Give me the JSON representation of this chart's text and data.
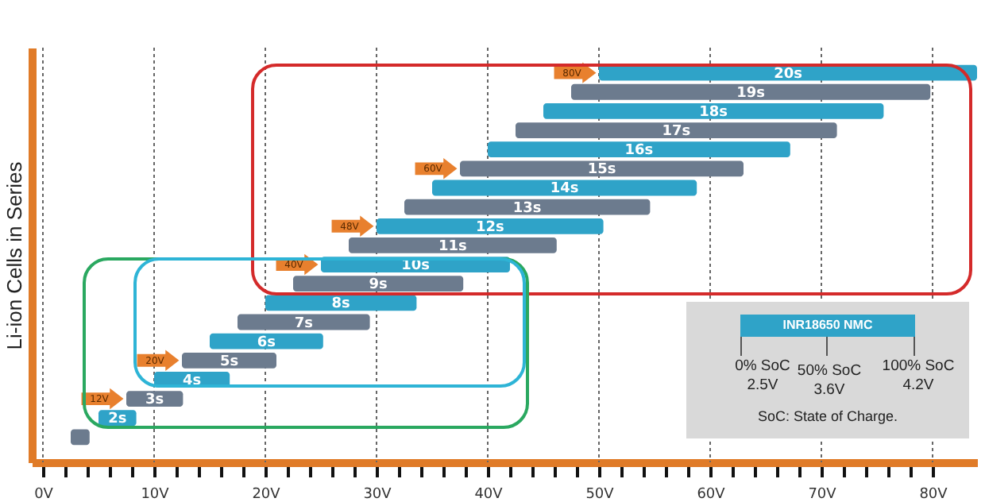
{
  "chart_data": {
    "type": "bar",
    "orientation": "horizontal",
    "ylabel": "Li-ion Cells in Series",
    "categories": [
      "20s",
      "19s",
      "18s",
      "17s",
      "16s",
      "15s",
      "14s",
      "13s",
      "12s",
      "11s",
      "10s",
      "9s",
      "8s",
      "7s",
      "6s",
      "5s",
      "4s",
      "3s",
      "2s",
      null
    ],
    "base": [
      50,
      47.5,
      45,
      42.5,
      40,
      37.5,
      35,
      32.5,
      30,
      27.5,
      25,
      22.5,
      20,
      17.5,
      15,
      12.5,
      10,
      7.5,
      5,
      2.5
    ],
    "values": [
      34,
      32.3,
      30.6,
      28.9,
      27.2,
      25.5,
      23.8,
      22.1,
      20.4,
      18.7,
      17,
      15.3,
      13.6,
      11.9,
      10.2,
      8.5,
      6.8,
      5.1,
      3.4,
      1.7
    ],
    "colors": [
      "#2fa3c8",
      "#6c7b8e",
      "#2fa3c8",
      "#6c7b8e",
      "#2fa3c8",
      "#6c7b8e",
      "#2fa3c8",
      "#6c7b8e",
      "#2fa3c8",
      "#6c7b8e",
      "#2fa3c8",
      "#6c7b8e",
      "#2fa3c8",
      "#6c7b8e",
      "#2fa3c8",
      "#6c7b8e",
      "#2fa3c8",
      "#6c7b8e",
      "#2fa3c8",
      "#6c7b8e"
    ],
    "xlim": [
      -1,
      84
    ],
    "xticks": [
      {
        "value": 0,
        "label": "0V"
      },
      {
        "value": 2,
        "label": null
      },
      {
        "value": 4,
        "label": null
      },
      {
        "value": 6,
        "label": null
      },
      {
        "value": 8,
        "label": null
      },
      {
        "value": 10,
        "label": "10V"
      },
      {
        "value": 12,
        "label": null
      },
      {
        "value": 14,
        "label": null
      },
      {
        "value": 16,
        "label": null
      },
      {
        "value": 18,
        "label": null
      },
      {
        "value": 20,
        "label": "20V"
      },
      {
        "value": 22,
        "label": null
      },
      {
        "value": 24,
        "label": null
      },
      {
        "value": 26,
        "label": null
      },
      {
        "value": 28,
        "label": null
      },
      {
        "value": 30,
        "label": "30V"
      },
      {
        "value": 32,
        "label": null
      },
      {
        "value": 34,
        "label": null
      },
      {
        "value": 36,
        "label": null
      },
      {
        "value": 38,
        "label": null
      },
      {
        "value": 40,
        "label": "40V"
      },
      {
        "value": 42,
        "label": null
      },
      {
        "value": 44,
        "label": null
      },
      {
        "value": 46,
        "label": null
      },
      {
        "value": 48,
        "label": null
      },
      {
        "value": 50,
        "label": "50V"
      },
      {
        "value": 52,
        "label": null
      },
      {
        "value": 54,
        "label": null
      },
      {
        "value": 56,
        "label": null
      },
      {
        "value": 58,
        "label": null
      },
      {
        "value": 60,
        "label": "60V"
      },
      {
        "value": 62,
        "label": null
      },
      {
        "value": 64,
        "label": null
      },
      {
        "value": 66,
        "label": null
      },
      {
        "value": 68,
        "label": null
      },
      {
        "value": 70,
        "label": "70V"
      },
      {
        "value": 72,
        "label": null
      },
      {
        "value": 74,
        "label": null
      },
      {
        "value": 76,
        "label": null
      },
      {
        "value": 78,
        "label": null
      },
      {
        "value": 80,
        "label": "80V"
      }
    ],
    "grid": "x",
    "tick_labels": "x",
    "annotations": [
      {
        "text": "12V",
        "x": 7.5,
        "y": "3s"
      },
      {
        "text": "20V",
        "x": 12.5,
        "y": "5s"
      },
      {
        "text": "40V",
        "x": 25,
        "y": "10s"
      },
      {
        "text": "48V",
        "x": 30,
        "y": "12s"
      },
      {
        "text": "60V",
        "x": 37.5,
        "y": "15s"
      },
      {
        "text": "80V",
        "x": 50,
        "y": "20s"
      },
      "INR18650 NMC",
      "0% SoC",
      "2.5V",
      "50% SoC",
      "3.6V",
      "100% SoC",
      "4.2V",
      "SoC: State of Charge."
    ]
  }
}
